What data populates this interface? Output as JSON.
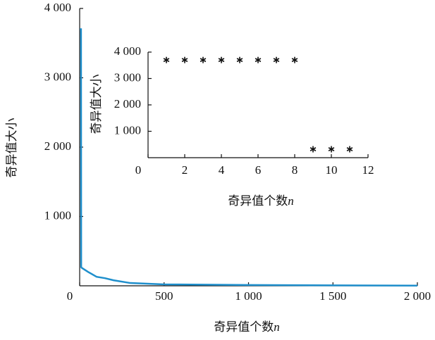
{
  "chart_data": [
    {
      "type": "line",
      "xlabel": "奇异值个数",
      "xlabel_symbol": "n",
      "ylabel": "奇异值大小",
      "x": [
        1,
        8,
        9,
        12,
        50,
        100,
        150,
        200,
        300,
        500,
        1000,
        1500,
        2000
      ],
      "series": [
        {
          "color": "#1f8fcc",
          "values": [
            3700,
            3700,
            270,
            260,
            200,
            130,
            110,
            80,
            40,
            20,
            12,
            6,
            2
          ]
        }
      ],
      "xlim": [
        0,
        2000
      ],
      "xticks": [
        0,
        500,
        {
          "value": 1000,
          "label": "1 000"
        },
        {
          "value": 1500,
          "label": "1 500"
        },
        {
          "value": 2000,
          "label": "2 000"
        }
      ],
      "ylim": [
        0,
        4000
      ],
      "yticks": [
        {
          "value": 1000,
          "label": "1 000"
        },
        {
          "value": 2000,
          "label": "2 000"
        },
        {
          "value": 3000,
          "label": "3 000"
        },
        {
          "value": 4000,
          "label": "4 000"
        }
      ]
    },
    {
      "type": "scatter",
      "xlabel": "奇异值个数",
      "xlabel_symbol": "n",
      "ylabel": "奇异值大小",
      "marker": "*",
      "x": [
        1,
        2,
        3,
        4,
        5,
        6,
        7,
        8,
        9,
        10,
        11
      ],
      "series": [
        {
          "color": "#111111",
          "values": [
            3700,
            3700,
            3700,
            3700,
            3700,
            3700,
            3700,
            3700,
            320,
            320,
            320
          ]
        }
      ],
      "xlim": [
        0,
        12
      ],
      "xticks": [
        0,
        2,
        4,
        6,
        8,
        10,
        12
      ],
      "ylim": [
        0,
        4000
      ],
      "yticks": [
        {
          "value": 1000,
          "label": "1 000"
        },
        {
          "value": 2000,
          "label": "2 000"
        },
        {
          "value": 3000,
          "label": "3 000"
        },
        {
          "value": 4000,
          "label": "4 000"
        }
      ]
    }
  ]
}
